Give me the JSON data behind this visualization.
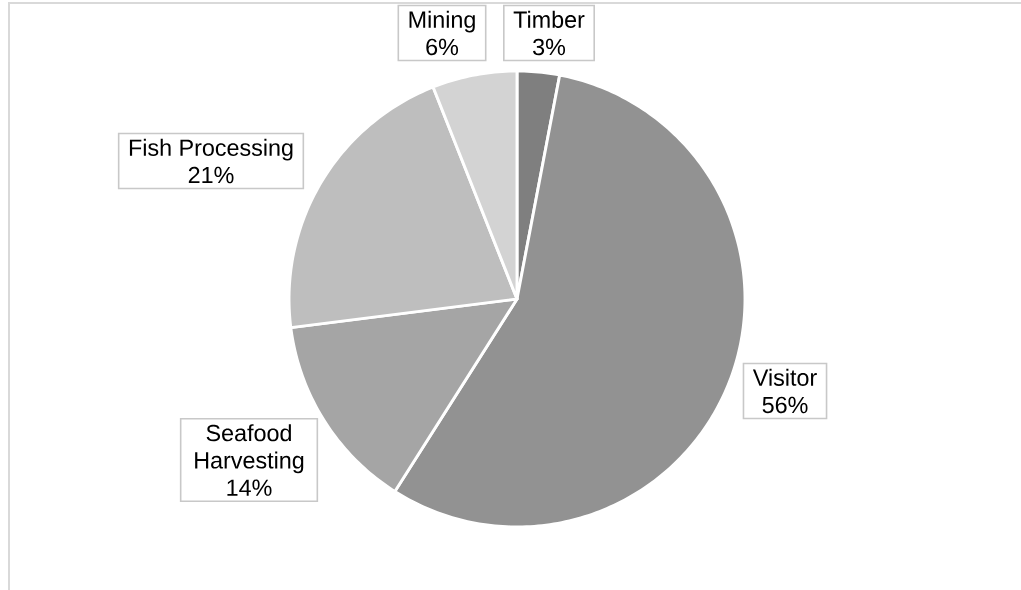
{
  "chart_data": {
    "type": "pie",
    "categories": [
      "Timber",
      "Visitor",
      "Seafood Harvesting",
      "Fish Processing",
      "Mining"
    ],
    "values": [
      3,
      56,
      14,
      21,
      6
    ],
    "colors": [
      "#7f7f7f",
      "#929292",
      "#a5a5a5",
      "#bebebe",
      "#d3d3d3"
    ],
    "value_labels": [
      "3%",
      "56%",
      "14%",
      "21%",
      "6%"
    ]
  }
}
